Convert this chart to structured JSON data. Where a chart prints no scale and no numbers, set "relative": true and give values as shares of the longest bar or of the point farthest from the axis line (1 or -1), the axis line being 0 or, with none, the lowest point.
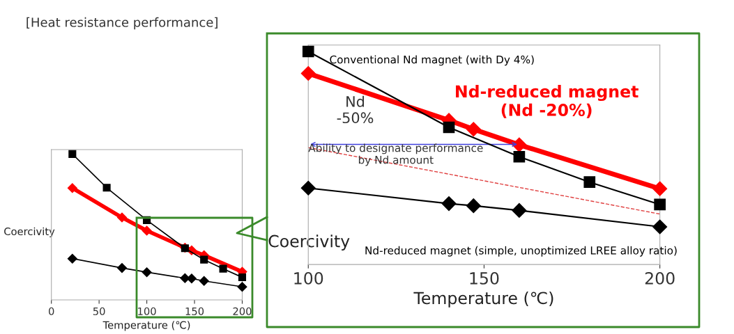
{
  "chart_data": [
    {
      "type": "line",
      "title": "[Heat resistance performance]",
      "xlabel": "Temperature (℃)",
      "ylabel": "Coercivity",
      "relative": true,
      "xlim": [
        0,
        200
      ],
      "xticks": [
        0,
        50,
        100,
        150,
        200
      ],
      "tick_labels": "x",
      "grid": false,
      "legend": false,
      "line_style": "solid",
      "series": [
        {
          "color": "#000000",
          "marker": "square",
          "x": [
            22,
            58,
            100,
            140,
            160,
            180,
            200
          ],
          "values": [
            1.0,
            0.769,
            0.547,
            0.354,
            0.276,
            0.214,
            0.155
          ]
        },
        {
          "color": "#ff0000",
          "marker": "diamond",
          "x": [
            22,
            74,
            100,
            140,
            147,
            160,
            200
          ],
          "values": [
            0.767,
            0.565,
            0.475,
            0.358,
            0.34,
            0.306,
            0.193
          ]
        },
        {
          "color": "#000000",
          "marker": "diamond",
          "x": [
            22,
            74,
            100,
            140,
            147,
            160,
            200
          ],
          "values": [
            0.283,
            0.219,
            0.19,
            0.149,
            0.147,
            0.13,
            0.09
          ]
        }
      ]
    },
    {
      "type": "line",
      "xlabel": "Temperature (℃)",
      "ylabel": "Coercivity",
      "relative": true,
      "xlim": [
        100,
        200
      ],
      "xticks": [
        100,
        150,
        200
      ],
      "tick_labels": "x",
      "grid": false,
      "legend": false,
      "line_style": "solid",
      "annotations": [
        "Nd\n-50%",
        "Ability to designate performance\nby Nd amount"
      ],
      "series": [
        {
          "name": "Conventional Nd magnet (with Dy 4%)",
          "color": "#000000",
          "marker": "square",
          "x": [
            100,
            140,
            160,
            180,
            200
          ],
          "values": [
            1.0,
            0.644,
            0.506,
            0.387,
            0.282
          ]
        },
        {
          "name": "Nd-reduced magnet\n(Nd -20%)",
          "color": "#ff0000",
          "marker": "diamond",
          "x": [
            100,
            140,
            147,
            160,
            200
          ],
          "values": [
            0.897,
            0.677,
            0.635,
            0.562,
            0.356
          ]
        },
        {
          "name": "Nd-reduced magnet (simple, unoptimized LREE alloy ratio)",
          "color": "#000000",
          "marker": "diamond",
          "x": [
            100,
            140,
            147,
            160,
            200
          ],
          "values": [
            0.359,
            0.286,
            0.276,
            0.254,
            0.177
          ]
        },
        {
          "color": "#e04040",
          "marker": "none",
          "line_style": "dashed",
          "x": [
            100,
            200
          ],
          "values": [
            0.549,
            0.237
          ]
        }
      ]
    }
  ]
}
